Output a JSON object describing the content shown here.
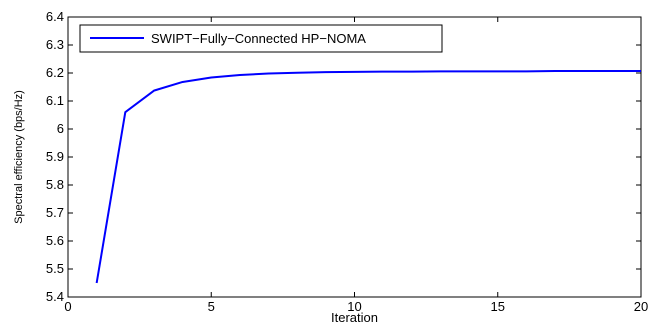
{
  "chart_data": {
    "type": "line",
    "xlabel": "Iteration",
    "ylabel": "Spectral efficiency (bps/Hz)",
    "xlim": [
      0,
      20
    ],
    "ylim": [
      5.4,
      6.4
    ],
    "xticks": [
      0,
      5,
      10,
      15,
      20
    ],
    "yticks": [
      5.4,
      5.5,
      5.6,
      5.7,
      5.8,
      5.9,
      6,
      6.1,
      6.2,
      6.3,
      6.4
    ],
    "grid": false,
    "legend_position": "top-left",
    "series": [
      {
        "name": "SWIPT−Fully−Connected HP−NOMA",
        "color": "#0000ff",
        "x": [
          1,
          2,
          3,
          4,
          5,
          6,
          7,
          8,
          9,
          10,
          11,
          12,
          13,
          14,
          15,
          16,
          17,
          18,
          19,
          20
        ],
        "y": [
          5.45,
          6.06,
          6.137,
          6.168,
          6.184,
          6.193,
          6.198,
          6.201,
          6.203,
          6.204,
          6.205,
          6.205,
          6.206,
          6.206,
          6.206,
          6.206,
          6.207,
          6.207,
          6.207,
          6.207
        ]
      }
    ]
  }
}
